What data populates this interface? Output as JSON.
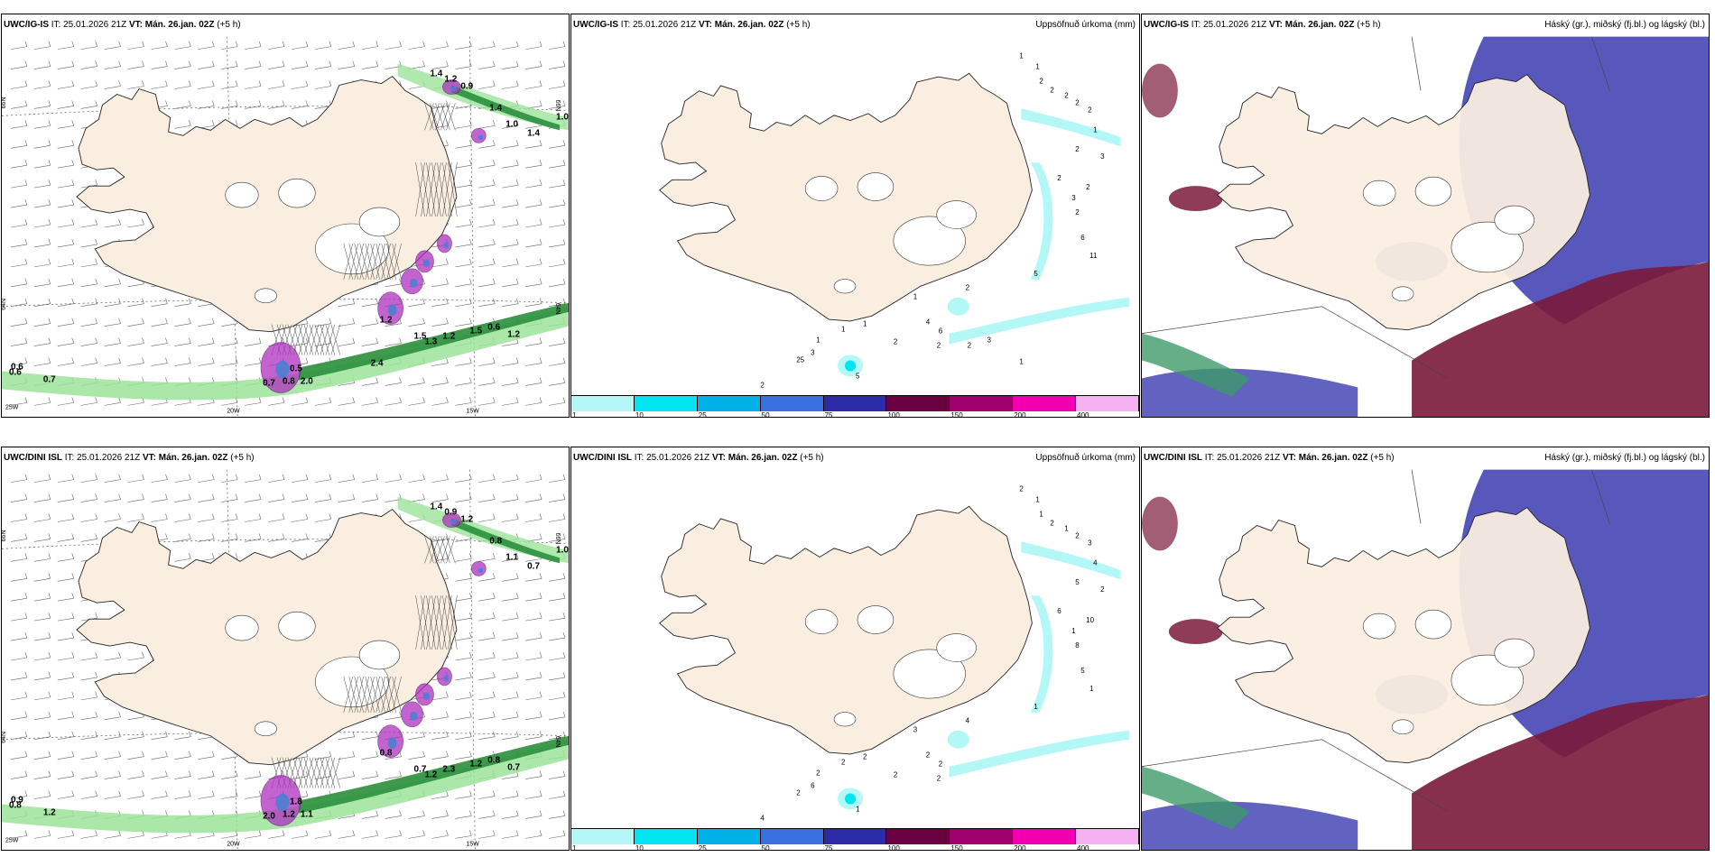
{
  "panels": [
    {
      "model": "UWC/IG-IS",
      "it_label": "IT:",
      "it": "25.01.2026 21Z",
      "vt_label": "VT:",
      "vt": "Mán. 26.jan. 02Z",
      "lead": "(+5 h)",
      "title": "",
      "axis": {
        "lat1": "66N",
        "lat2": "64N",
        "lon1": "25W",
        "lon2": "20W",
        "lon3": "15W"
      },
      "labels": [
        "1.4",
        "1.2",
        "0.9",
        "1.4",
        "1.0",
        "1.0",
        "1.4",
        "1.2",
        "0.5",
        "0.6",
        "0.7",
        "0.6",
        "0.7",
        "0.8",
        "2.0",
        "1.5",
        "1.3",
        "1.2",
        "1.5",
        "0.6",
        "1.2",
        "2.4"
      ]
    },
    {
      "model": "UWC/IG-IS",
      "it_label": "IT:",
      "it": "25.01.2026 21Z",
      "vt_label": "VT:",
      "vt": "Mán. 26.jan. 02Z",
      "lead": "(+5 h)",
      "title": "Uppsöfnuð úrkoma (mm)",
      "labels": [
        "1",
        "2",
        "1",
        "2",
        "2",
        "2",
        "2",
        "1",
        "2",
        "3",
        "2",
        "2",
        "3",
        "2",
        "6",
        "11",
        "5",
        "2",
        "1",
        "6",
        "4",
        "2",
        "1",
        "1",
        "1",
        "3",
        "25",
        "5",
        "2",
        "1",
        "2",
        "2",
        "3",
        "1"
      ]
    },
    {
      "model": "UWC/IG-IS",
      "it_label": "IT:",
      "it": "25.01.2026 21Z",
      "vt_label": "VT:",
      "vt": "Mán. 26.jan. 02Z",
      "lead": "(+5 h)",
      "title": "Háský (gr.), miðský (fj.bl.) og lágský (bl.)"
    },
    {
      "model": "UWC/DINI ISL",
      "it_label": "IT:",
      "it": "25.01.2026 21Z",
      "vt_label": "VT:",
      "vt": "Mán. 26.jan. 02Z",
      "lead": "(+5 h)",
      "title": "",
      "axis": {
        "lat1": "66N",
        "lat2": "64N",
        "lon1": "25W",
        "lon2": "20W",
        "lon3": "15W"
      },
      "labels": [
        "1.4",
        "0.9",
        "1.2",
        "0.8",
        "1.0",
        "1.1",
        "0.7",
        "0.8",
        "1.8",
        "0.9",
        "1.2",
        "0.8",
        "2.0",
        "1.2",
        "1.1",
        "0.7",
        "1.2",
        "2.3",
        "1.2",
        "0.8",
        "0.7"
      ]
    },
    {
      "model": "UWC/DINI ISL",
      "it_label": "IT:",
      "it": "25.01.2026 21Z",
      "vt_label": "VT:",
      "vt": "Mán. 26.jan. 02Z",
      "lead": "(+5 h)",
      "title": "Uppsöfnuð úrkoma (mm)",
      "labels": [
        "2",
        "1",
        "1",
        "2",
        "1",
        "2",
        "3",
        "4",
        "5",
        "2",
        "6",
        "10",
        "1",
        "8",
        "5",
        "1",
        "1",
        "4",
        "3",
        "2",
        "2",
        "2",
        "2",
        "2",
        "2",
        "6",
        "2",
        "1",
        "4",
        "2",
        "2"
      ]
    },
    {
      "model": "UWC/DINI ISL",
      "it_label": "IT:",
      "it": "25.01.2026 21Z",
      "vt_label": "VT:",
      "vt": "Mán. 26.jan. 02Z",
      "lead": "(+5 h)",
      "title": "Háský (gr.), miðský (fj.bl.) og lágský (bl.)"
    }
  ],
  "legend": {
    "ticks": [
      "1",
      "10",
      "25",
      "50",
      "75",
      "100",
      "150",
      "200",
      "400"
    ],
    "colors": [
      "#b3f7f7",
      "#00e5f0",
      "#00b0e6",
      "#3a6fe0",
      "#2b2ba8",
      "#6a0040",
      "#a0006b",
      "#f000b0",
      "#f5b0ef"
    ]
  },
  "colors": {
    "land": "#faeee0",
    "wind_green": "#2a8f3c",
    "precip_pink": "#b030c0",
    "cloud_high": "#3e9a6a",
    "cloud_mid": "#7a1a3a",
    "cloud_low": "#3b3bb0"
  }
}
